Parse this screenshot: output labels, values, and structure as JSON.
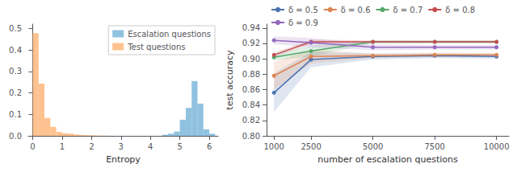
{
  "chart_data": [
    {
      "type": "histogram",
      "xlabel": "Entropy",
      "xlim": [
        -0.15,
        6.3
      ],
      "ylim": [
        0,
        0.52
      ],
      "xticks": [
        0,
        1,
        2,
        3,
        4,
        5,
        6
      ],
      "yticks": [
        {
          "value": 0,
          "label": "0.0"
        },
        0.1,
        0.2,
        0.3,
        0.4,
        0.5
      ],
      "grid": false,
      "legend": "upper right",
      "series": [
        {
          "name": "Escalation questions",
          "color": "#6baed6",
          "bins": [
            4.4,
            4.6,
            4.8,
            5.0,
            5.2,
            5.4,
            5.6,
            5.8,
            6.0,
            6.2
          ],
          "values": [
            0.005,
            0.01,
            0.02,
            0.075,
            0.13,
            0.255,
            0.15,
            0.03,
            0.01
          ]
        },
        {
          "name": "Test questions",
          "color": "#fdae6b",
          "bins": [
            0.0,
            0.2,
            0.4,
            0.6,
            0.8,
            1.0,
            1.2,
            1.4,
            1.6,
            1.8,
            2.0,
            2.2,
            2.4,
            2.6
          ],
          "values": [
            0.478,
            0.243,
            0.083,
            0.042,
            0.018,
            0.012,
            0.01,
            0.006,
            0.004,
            0.003,
            0.002,
            0.001,
            0.001
          ]
        }
      ]
    },
    {
      "type": "line",
      "xlabel": "number of escalation questions",
      "ylabel": "test accuracy",
      "x": [
        1000,
        2500,
        5000,
        7500,
        10000
      ],
      "xlim": [
        700,
        10500
      ],
      "xticks": [
        1000,
        2500,
        5000,
        7500,
        10000
      ],
      "ylim": [
        0.8,
        0.945
      ],
      "yticks": [
        {
          "value": 0.8,
          "label": "0.80"
        },
        0.82,
        0.84,
        0.86,
        0.88,
        {
          "value": 0.9,
          "label": "0.90"
        },
        0.92,
        0.94
      ],
      "grid": false,
      "legend": "upper left",
      "marker": "o",
      "series": [
        {
          "name": "δ = 0.5",
          "color": "#4c72b0",
          "values": [
            0.856,
            0.899,
            0.903,
            0.904,
            0.903
          ],
          "std": [
            0.025,
            0.01,
            0.004,
            0.003,
            0.003
          ]
        },
        {
          "name": "δ = 0.6",
          "color": "#dd8452",
          "values": [
            0.878,
            0.903,
            0.904,
            0.905,
            0.905
          ],
          "std": [
            0.018,
            0.009,
            0.003,
            0.003,
            0.003
          ]
        },
        {
          "name": "δ = 0.7",
          "color": "#55a868",
          "values": [
            0.902,
            0.91,
            0.922,
            0.922,
            0.922
          ],
          "std": [
            0.004,
            0.007,
            0.002,
            0.002,
            0.002
          ]
        },
        {
          "name": "δ = 0.8",
          "color": "#c44e52",
          "values": [
            0.905,
            0.922,
            0.922,
            0.922,
            0.922
          ],
          "std": [
            0.003,
            0.003,
            0.002,
            0.002,
            0.002
          ]
        },
        {
          "name": "δ = 0.9",
          "color": "#9467bd",
          "values": [
            0.924,
            0.921,
            0.915,
            0.915,
            0.915
          ],
          "std": [
            0.005,
            0.006,
            0.004,
            0.003,
            0.003
          ]
        }
      ]
    }
  ]
}
